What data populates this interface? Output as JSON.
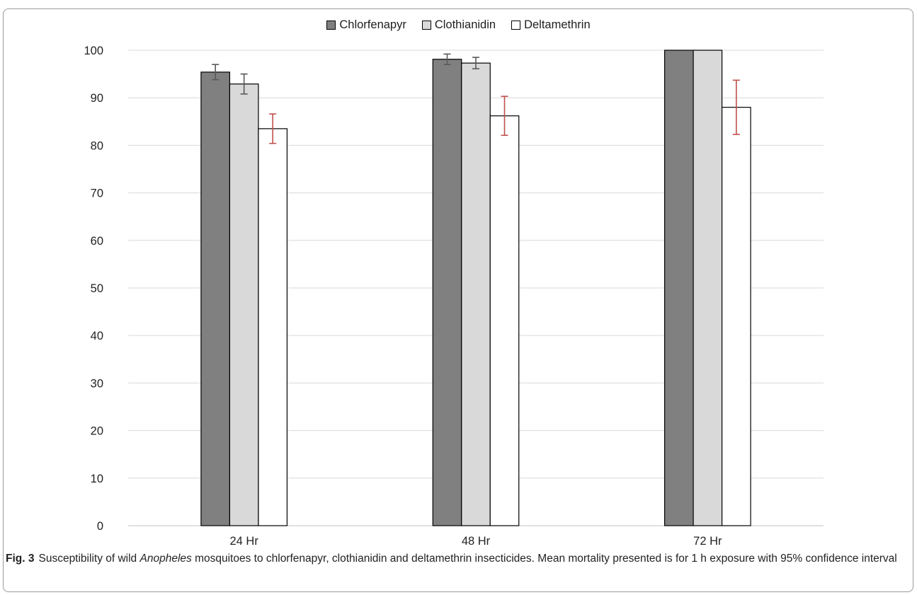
{
  "chart_data": {
    "type": "bar",
    "categories": [
      "24 Hr",
      "48 Hr",
      "72 Hr"
    ],
    "series": [
      {
        "name": "Chlorfenapyr",
        "values": [
          95.4,
          98.1,
          100
        ],
        "ci_low": [
          93.8,
          97.0,
          100
        ],
        "ci_high": [
          97.0,
          99.2,
          100
        ],
        "fill": "#808080",
        "error_color": "#595959"
      },
      {
        "name": "Clothianidin",
        "values": [
          92.9,
          97.3,
          100
        ],
        "ci_low": [
          90.8,
          96.1,
          100
        ],
        "ci_high": [
          95.0,
          98.5,
          100
        ],
        "fill": "#d9d9d9",
        "error_color": "#595959"
      },
      {
        "name": "Deltamethrin",
        "values": [
          83.5,
          86.2,
          88.0
        ],
        "ci_low": [
          80.4,
          82.1,
          82.3
        ],
        "ci_high": [
          86.6,
          90.3,
          93.7
        ],
        "fill": "#ffffff",
        "error_color": "#c0504d"
      }
    ],
    "yticks": [
      "0",
      "10",
      "20",
      "30",
      "40",
      "50",
      "60",
      "70",
      "80",
      "90",
      "100"
    ],
    "ylim": [
      0,
      100
    ],
    "grid": true,
    "legend_position": "top-center"
  },
  "caption": {
    "fig_label": "Fig. 3",
    "text_before": "Susceptibility of wild ",
    "italic": "Anopheles",
    "text_after": " mosquitoes to chlorfenapyr, clothianidin and deltamethrin insecticides. Mean mortality presented is for 1 h exposure with 95% confidence interval"
  }
}
